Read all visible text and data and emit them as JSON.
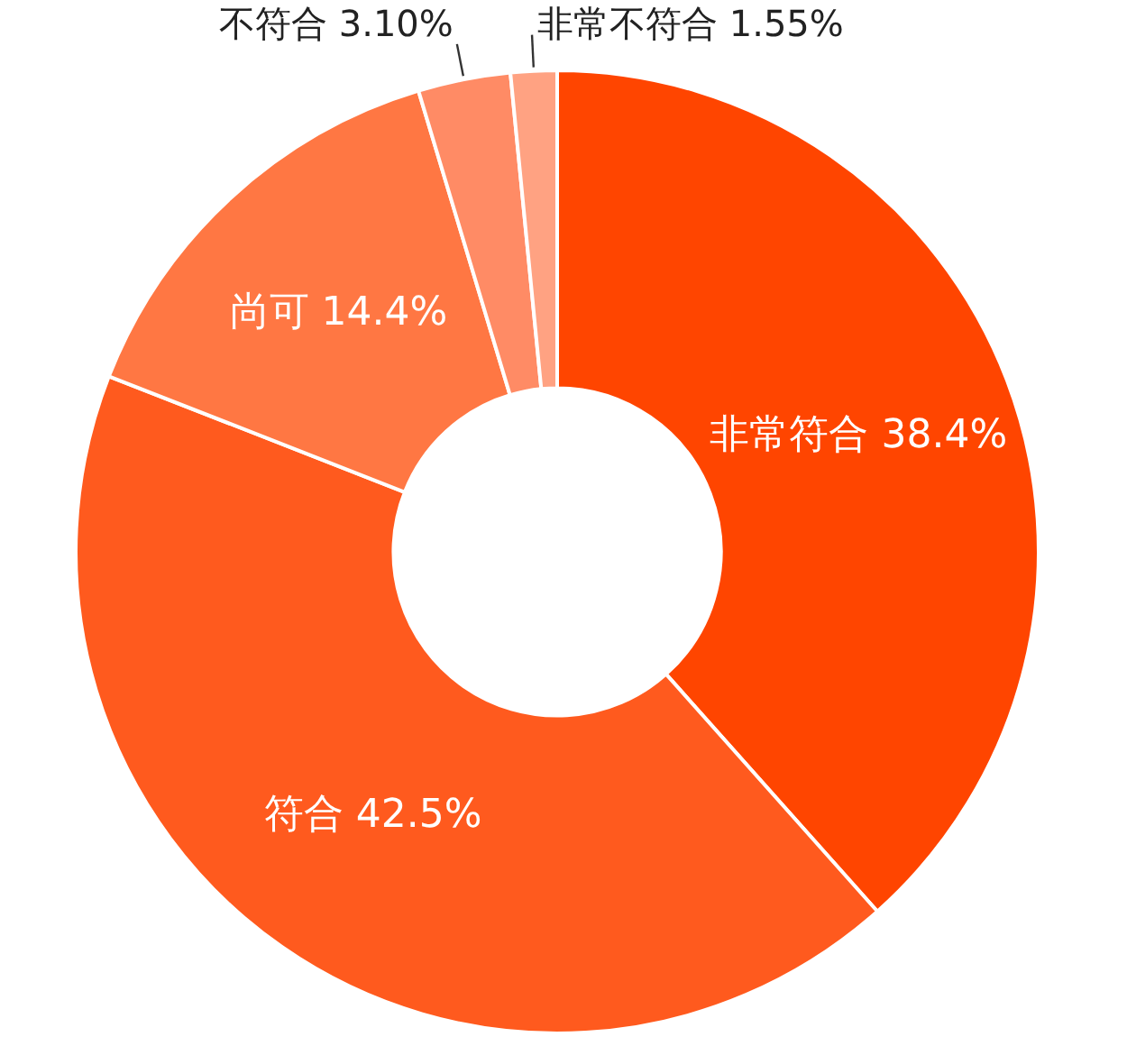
{
  "chart_data": {
    "type": "donut",
    "categories": [
      "非常符合",
      "符合",
      "尚可",
      "不符合",
      "非常不符合"
    ],
    "values": [
      38.4,
      42.5,
      14.4,
      3.1,
      1.55
    ],
    "colors": [
      "#ff4500",
      "#ff5a1e",
      "#ff7743",
      "#ff8b65",
      "#ffa282"
    ],
    "value_labels": [
      "38.4%",
      "42.5%",
      "14.4%",
      "3.10%",
      "1.55%"
    ],
    "legend": false
  }
}
